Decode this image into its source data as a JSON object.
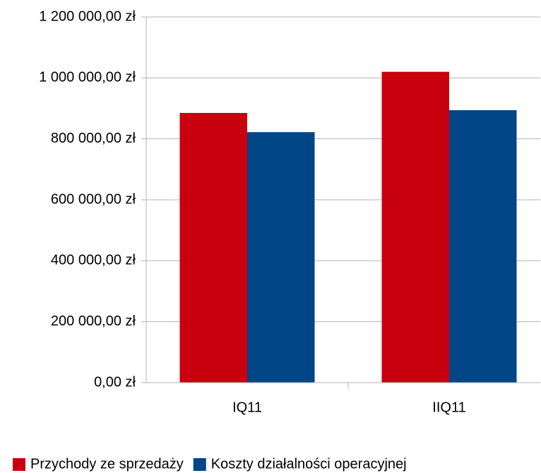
{
  "chart_data": {
    "type": "bar",
    "categories": [
      "IQ11",
      "IIQ11"
    ],
    "series": [
      {
        "name": "Przychody ze sprzedaży",
        "color": "#c9000e",
        "values": [
          885000,
          1020000
        ]
      },
      {
        "name": "Koszty działalności operacyjnej",
        "color": "#004586",
        "values": [
          822000,
          894000
        ]
      }
    ],
    "ylim": [
      0,
      1200000
    ],
    "yticks": [
      {
        "value": 0,
        "label": "0,00 zł"
      },
      {
        "value": 200000,
        "label": "200 000,00 zł"
      },
      {
        "value": 400000,
        "label": "400 000,00 zł"
      },
      {
        "value": 600000,
        "label": "600 000,00 zł"
      },
      {
        "value": 800000,
        "label": "800 000,00 zł"
      },
      {
        "value": 1000000,
        "label": "1 000 000,00 zł"
      },
      {
        "value": 1200000,
        "label": "1 200 000,00 zł"
      }
    ],
    "grid": true,
    "legend": "bottom"
  }
}
